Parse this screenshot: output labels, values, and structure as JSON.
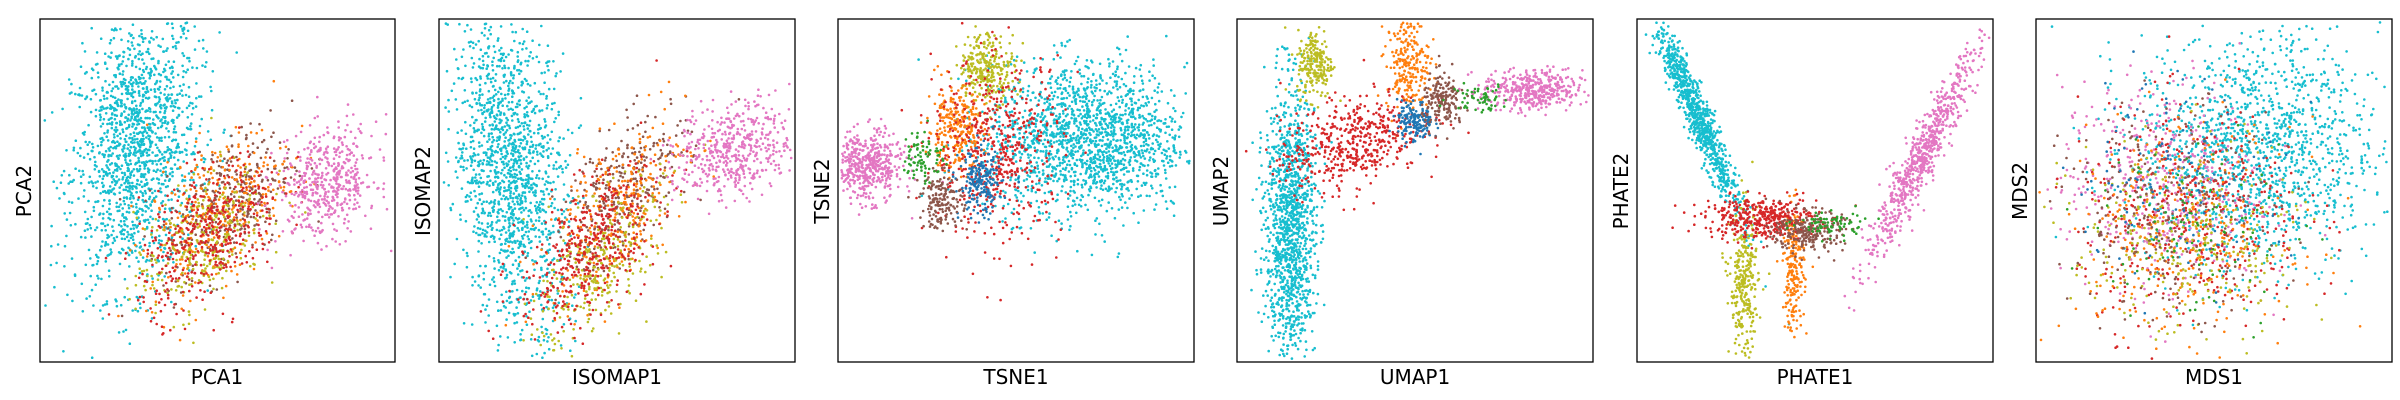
{
  "figure": {
    "palette": {
      "cyan": "#17becf",
      "orange": "#ff7f0e",
      "red": "#d62728",
      "pink": "#e377c2",
      "olive": "#bcbd22",
      "brown": "#8c564b",
      "blue": "#1f77b4",
      "green": "#2ca02c",
      "gray": "#7f7f7f",
      "purple": "#9467bd"
    }
  },
  "chart_data": [
    {
      "type": "scatter",
      "xlabel": "PCA1",
      "ylabel": "PCA2",
      "ticks": "none",
      "clusters": [
        {
          "color": "cyan",
          "cx": 0.27,
          "cy": 0.62,
          "sx": 0.09,
          "sy": 0.2,
          "n": 1500,
          "corr": 0.2
        },
        {
          "color": "brown",
          "cx": 0.53,
          "cy": 0.46,
          "sx": 0.09,
          "sy": 0.11,
          "n": 320,
          "corr": 0.5
        },
        {
          "color": "orange",
          "cx": 0.5,
          "cy": 0.44,
          "sx": 0.1,
          "sy": 0.12,
          "n": 320,
          "corr": 0.5
        },
        {
          "color": "olive",
          "cx": 0.45,
          "cy": 0.35,
          "sx": 0.09,
          "sy": 0.11,
          "n": 300,
          "corr": 0.5
        },
        {
          "color": "red",
          "cx": 0.48,
          "cy": 0.38,
          "sx": 0.1,
          "sy": 0.11,
          "n": 420,
          "corr": 0.5
        },
        {
          "color": "pink",
          "cx": 0.81,
          "cy": 0.52,
          "sx": 0.07,
          "sy": 0.08,
          "n": 480,
          "corr": 0.2
        }
      ]
    },
    {
      "type": "scatter",
      "xlabel": "ISOMAP1",
      "ylabel": "ISOMAP2",
      "ticks": "none",
      "clusters": [
        {
          "color": "cyan",
          "cx": 0.2,
          "cy": 0.55,
          "sx": 0.08,
          "sy": 0.24,
          "n": 1500,
          "corr": -0.3
        },
        {
          "color": "brown",
          "cx": 0.52,
          "cy": 0.5,
          "sx": 0.09,
          "sy": 0.12,
          "n": 320,
          "corr": 0.6
        },
        {
          "color": "orange",
          "cx": 0.5,
          "cy": 0.45,
          "sx": 0.1,
          "sy": 0.13,
          "n": 300,
          "corr": 0.6
        },
        {
          "color": "olive",
          "cx": 0.45,
          "cy": 0.28,
          "sx": 0.09,
          "sy": 0.12,
          "n": 300,
          "corr": 0.6
        },
        {
          "color": "red",
          "cx": 0.42,
          "cy": 0.33,
          "sx": 0.1,
          "sy": 0.12,
          "n": 420,
          "corr": 0.6
        },
        {
          "color": "pink",
          "cx": 0.83,
          "cy": 0.62,
          "sx": 0.08,
          "sy": 0.07,
          "n": 480,
          "corr": 0.2
        }
      ]
    },
    {
      "type": "scatter",
      "xlabel": "TSNE1",
      "ylabel": "TSNE2",
      "ticks": "none",
      "clusters": [
        {
          "color": "cyan",
          "cx": 0.7,
          "cy": 0.65,
          "sx": 0.14,
          "sy": 0.11,
          "n": 1700,
          "corr": 0
        },
        {
          "color": "pink",
          "cx": 0.08,
          "cy": 0.57,
          "sx": 0.05,
          "sy": 0.05,
          "n": 500,
          "corr": 0
        },
        {
          "color": "olive",
          "cx": 0.42,
          "cy": 0.86,
          "sx": 0.04,
          "sy": 0.05,
          "n": 280,
          "corr": 0
        },
        {
          "color": "orange",
          "cx": 0.33,
          "cy": 0.68,
          "sx": 0.04,
          "sy": 0.06,
          "n": 280,
          "corr": 0
        },
        {
          "color": "red",
          "cx": 0.45,
          "cy": 0.62,
          "sx": 0.09,
          "sy": 0.13,
          "n": 520,
          "corr": 0
        },
        {
          "color": "blue",
          "cx": 0.4,
          "cy": 0.52,
          "sx": 0.03,
          "sy": 0.05,
          "n": 200,
          "corr": 0
        },
        {
          "color": "brown",
          "cx": 0.29,
          "cy": 0.47,
          "sx": 0.03,
          "sy": 0.04,
          "n": 160,
          "corr": 0
        },
        {
          "color": "green",
          "cx": 0.24,
          "cy": 0.6,
          "sx": 0.03,
          "sy": 0.04,
          "n": 80,
          "corr": 0
        }
      ]
    },
    {
      "type": "scatter",
      "xlabel": "UMAP1",
      "ylabel": "UMAP2",
      "ticks": "none",
      "clusters": [
        {
          "color": "cyan",
          "cx": 0.15,
          "cy": 0.4,
          "sx": 0.035,
          "sy": 0.2,
          "n": 1300,
          "corr": 0
        },
        {
          "color": "pink",
          "cx": 0.83,
          "cy": 0.79,
          "sx": 0.07,
          "sy": 0.03,
          "n": 420,
          "corr": 0
        },
        {
          "color": "olive",
          "cx": 0.22,
          "cy": 0.87,
          "sx": 0.025,
          "sy": 0.05,
          "n": 220,
          "corr": 0
        },
        {
          "color": "orange",
          "cx": 0.48,
          "cy": 0.87,
          "sx": 0.03,
          "sy": 0.07,
          "n": 240,
          "corr": 0
        },
        {
          "color": "red",
          "cx": 0.32,
          "cy": 0.64,
          "sx": 0.1,
          "sy": 0.07,
          "n": 500,
          "corr": 0.4
        },
        {
          "color": "blue",
          "cx": 0.5,
          "cy": 0.7,
          "sx": 0.025,
          "sy": 0.03,
          "n": 160,
          "corr": 0
        },
        {
          "color": "brown",
          "cx": 0.58,
          "cy": 0.76,
          "sx": 0.03,
          "sy": 0.04,
          "n": 180,
          "corr": 0
        },
        {
          "color": "green",
          "cx": 0.68,
          "cy": 0.77,
          "sx": 0.04,
          "sy": 0.02,
          "n": 60,
          "corr": 0
        }
      ]
    },
    {
      "type": "scatter",
      "xlabel": "PHATE1",
      "ylabel": "PHATE2",
      "ticks": "none",
      "clusters": [
        {
          "color": "cyan",
          "cx": 0.17,
          "cy": 0.72,
          "sx": 0.06,
          "sy": 0.14,
          "n": 900,
          "corr": -0.95
        },
        {
          "color": "pink",
          "cx": 0.8,
          "cy": 0.6,
          "sx": 0.08,
          "sy": 0.16,
          "n": 700,
          "corr": 0.95
        },
        {
          "color": "olive",
          "cx": 0.3,
          "cy": 0.22,
          "sx": 0.02,
          "sy": 0.11,
          "n": 300,
          "corr": 0
        },
        {
          "color": "orange",
          "cx": 0.44,
          "cy": 0.27,
          "sx": 0.015,
          "sy": 0.09,
          "n": 200,
          "corr": 0
        },
        {
          "color": "red",
          "cx": 0.35,
          "cy": 0.42,
          "sx": 0.08,
          "sy": 0.03,
          "n": 420,
          "corr": 0
        },
        {
          "color": "brown",
          "cx": 0.48,
          "cy": 0.38,
          "sx": 0.05,
          "sy": 0.03,
          "n": 240,
          "corr": 0
        },
        {
          "color": "green",
          "cx": 0.54,
          "cy": 0.4,
          "sx": 0.05,
          "sy": 0.02,
          "n": 80,
          "corr": 0
        }
      ]
    },
    {
      "type": "scatter",
      "xlabel": "MDS1",
      "ylabel": "MDS2",
      "ticks": "none",
      "clusters": [
        {
          "color": "cyan",
          "cx": 0.62,
          "cy": 0.62,
          "sx": 0.17,
          "sy": 0.17,
          "n": 1400,
          "corr": 0
        },
        {
          "color": "pink",
          "cx": 0.35,
          "cy": 0.52,
          "sx": 0.14,
          "sy": 0.15,
          "n": 450,
          "corr": 0
        },
        {
          "color": "red",
          "cx": 0.44,
          "cy": 0.42,
          "sx": 0.16,
          "sy": 0.16,
          "n": 450,
          "corr": 0
        },
        {
          "color": "orange",
          "cx": 0.4,
          "cy": 0.38,
          "sx": 0.16,
          "sy": 0.16,
          "n": 300,
          "corr": 0
        },
        {
          "color": "olive",
          "cx": 0.42,
          "cy": 0.34,
          "sx": 0.16,
          "sy": 0.15,
          "n": 300,
          "corr": 0
        },
        {
          "color": "brown",
          "cx": 0.38,
          "cy": 0.45,
          "sx": 0.15,
          "sy": 0.15,
          "n": 250,
          "corr": 0
        },
        {
          "color": "blue",
          "cx": 0.4,
          "cy": 0.55,
          "sx": 0.15,
          "sy": 0.15,
          "n": 120,
          "corr": 0
        },
        {
          "color": "green",
          "cx": 0.45,
          "cy": 0.4,
          "sx": 0.15,
          "sy": 0.15,
          "n": 100,
          "corr": 0
        }
      ]
    }
  ]
}
